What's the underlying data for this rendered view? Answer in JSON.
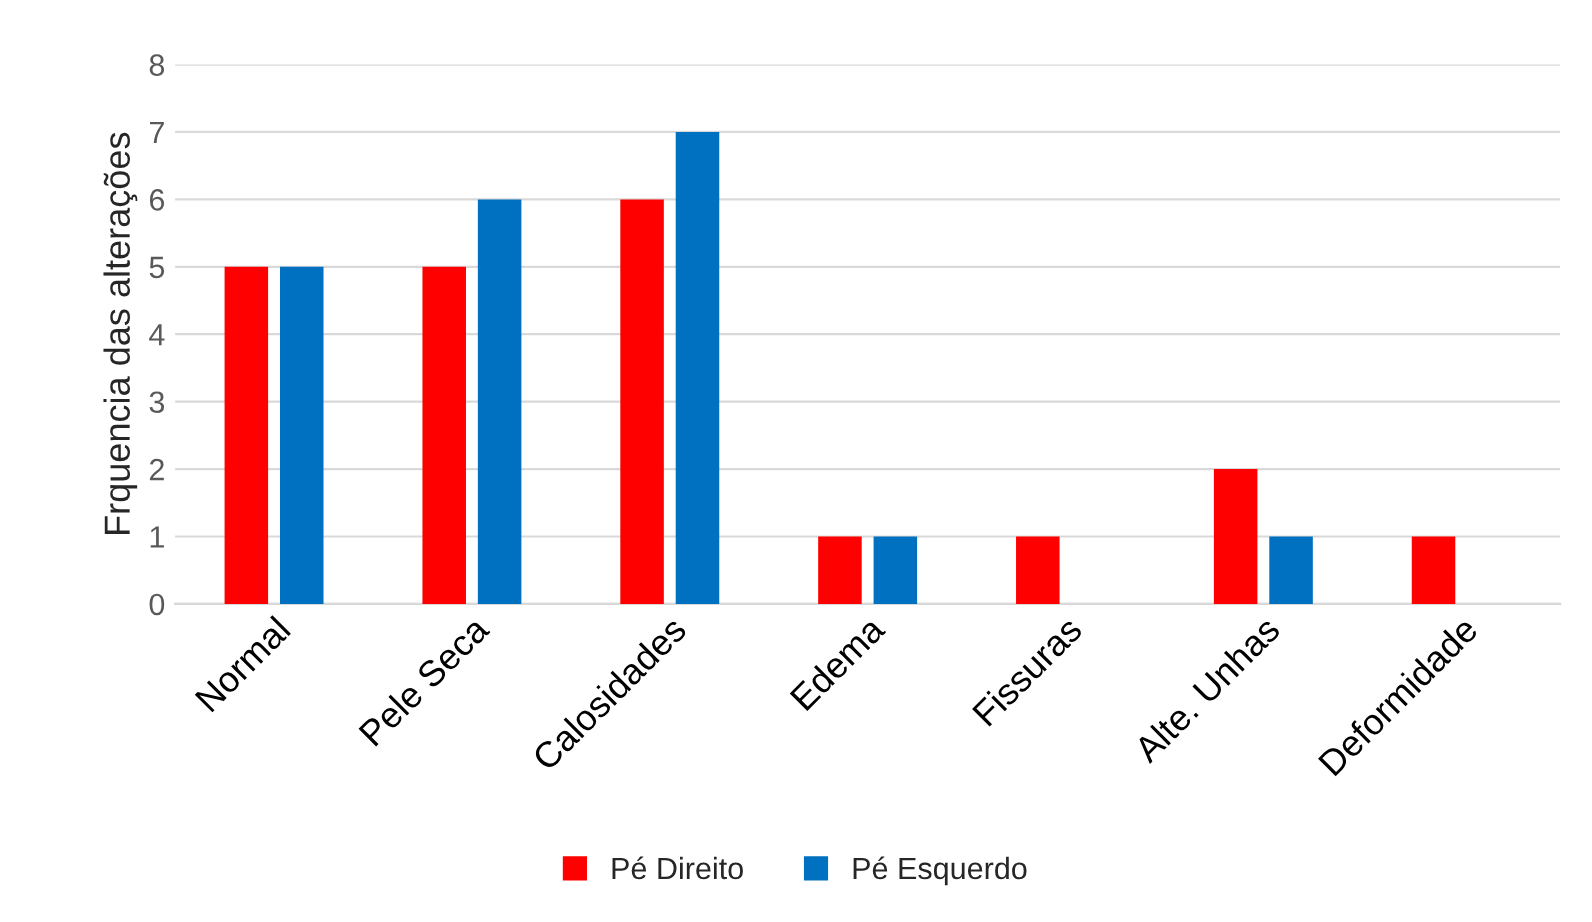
{
  "chart_data": {
    "type": "bar",
    "ylabel": "Frquencia das alterações",
    "categories": [
      "Normal",
      "Pele Seca",
      "Calosidades",
      "Edema",
      "Fissuras",
      "Alte. Unhas",
      "Deformidade"
    ],
    "series": [
      {
        "name": "Pé Direito",
        "color": "#ff0000",
        "values": [
          5,
          5,
          6,
          1,
          1,
          2,
          1
        ]
      },
      {
        "name": "Pé Esquerdo",
        "color": "#0070c0",
        "values": [
          5,
          6,
          7,
          1,
          null,
          1,
          null
        ]
      }
    ],
    "ylim": [
      0,
      8
    ],
    "yticks": [
      0,
      1,
      2,
      3,
      4,
      5,
      6,
      7,
      8
    ],
    "grid": "y",
    "legend": "bottom"
  }
}
